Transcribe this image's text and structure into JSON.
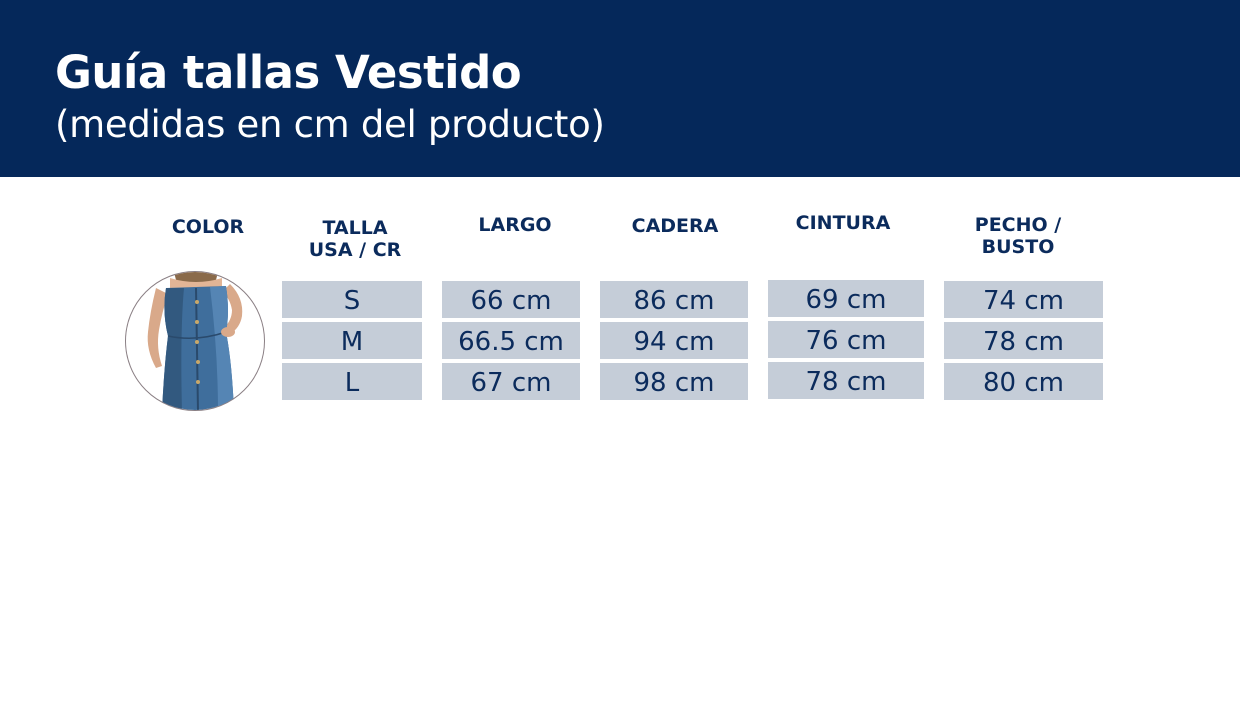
{
  "header": {
    "title": "Guía tallas Vestido",
    "subtitle": "(medidas en cm del producto)"
  },
  "table": {
    "columns": [
      {
        "line1": "COLOR",
        "line2": ""
      },
      {
        "line1": "TALLA",
        "line2": "USA / CR"
      },
      {
        "line1": "LARGO",
        "line2": ""
      },
      {
        "line1": "CADERA",
        "line2": ""
      },
      {
        "line1": "CINTURA",
        "line2": ""
      },
      {
        "line1": "PECHO /",
        "line2": "BUSTO"
      }
    ],
    "rows": [
      {
        "talla": "S",
        "largo": "66 cm",
        "cadera": "86 cm",
        "cintura": "69 cm",
        "pecho": "74 cm"
      },
      {
        "talla": "M",
        "largo": "66.5 cm",
        "cadera": "94 cm",
        "cintura": "76 cm",
        "pecho": "78 cm"
      },
      {
        "talla": "L",
        "largo": "67 cm",
        "cadera": "98 cm",
        "cintura": "78 cm",
        "pecho": "80 cm"
      }
    ]
  },
  "colors": {
    "banner": "#05285a",
    "text_dark": "#0b2b5c",
    "cell_bg": "#c5cdd8",
    "denim": "#3f6e9c"
  },
  "icons": {
    "color_swatch": "denim-dress-photo"
  }
}
